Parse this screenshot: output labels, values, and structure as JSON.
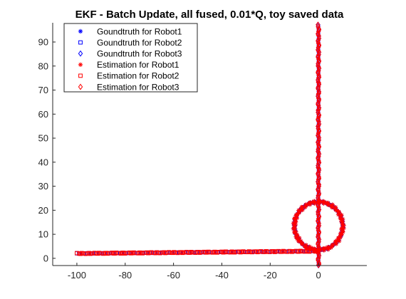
{
  "chart_data": {
    "type": "scatter",
    "title": "EKF - Batch Update, all fused, 0.01*Q, toy saved data",
    "xlabel": "",
    "ylabel": "",
    "xlim": [
      -110,
      20
    ],
    "ylim": [
      -3,
      98
    ],
    "xticks": [
      -100,
      -80,
      -60,
      -40,
      -20,
      0
    ],
    "yticks": [
      0,
      10,
      20,
      30,
      40,
      50,
      60,
      70,
      80,
      90
    ],
    "grid": false,
    "legend_position": "top-left",
    "legend": [
      {
        "label": "Goundtruth for Robot1",
        "marker": "asterisk",
        "color": "#0000ff"
      },
      {
        "label": "Goundtruth for Robot2",
        "marker": "square",
        "color": "#0000ff"
      },
      {
        "label": "Goundtruth for Robot3",
        "marker": "diamond",
        "color": "#0000ff"
      },
      {
        "label": "Estimation for Robot1",
        "marker": "asterisk",
        "color": "#ff0000"
      },
      {
        "label": "Estimation for Robot2",
        "marker": "square",
        "color": "#ff0000"
      },
      {
        "label": "Estimation for Robot3",
        "marker": "diamond",
        "color": "#ff0000"
      }
    ],
    "series": [
      {
        "name": "Goundtruth for Robot1",
        "marker": "asterisk",
        "color": "#0000ff",
        "shape": "circle",
        "center": [
          0,
          13.5
        ],
        "radius": 10,
        "points": 120
      },
      {
        "name": "Goundtruth for Robot2",
        "marker": "square",
        "color": "#0000ff",
        "shape": "line",
        "from": [
          -100,
          2
        ],
        "to": [
          0,
          3
        ],
        "points": 140
      },
      {
        "name": "Goundtruth for Robot3",
        "marker": "diamond",
        "color": "#0000ff",
        "shape": "line",
        "from": [
          0,
          -3
        ],
        "to": [
          0,
          97
        ],
        "points": 150
      },
      {
        "name": "Estimation for Robot1",
        "marker": "asterisk",
        "color": "#ff0000",
        "shape": "circle",
        "center": [
          0,
          13.5
        ],
        "radius": 10,
        "points": 120
      },
      {
        "name": "Estimation for Robot2",
        "marker": "square",
        "color": "#ff0000",
        "shape": "line",
        "from": [
          -100,
          2
        ],
        "to": [
          0,
          3
        ],
        "points": 140
      },
      {
        "name": "Estimation for Robot3",
        "marker": "diamond",
        "color": "#ff0000",
        "shape": "line",
        "from": [
          0,
          -3
        ],
        "to": [
          0,
          97
        ],
        "points": 150
      }
    ]
  }
}
